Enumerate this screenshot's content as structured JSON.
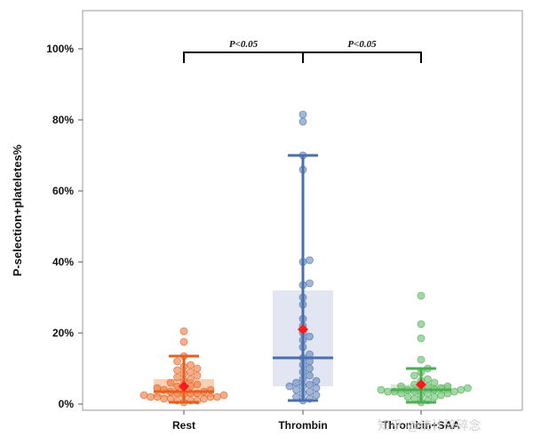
{
  "chart_data": {
    "type": "box",
    "title": "",
    "xlabel": "",
    "ylabel": "P-selection+plateletes%",
    "ylim": [
      0,
      100
    ],
    "yticks": [
      "0%",
      "20%",
      "40%",
      "60%",
      "80%",
      "100%"
    ],
    "grid": false,
    "categories": [
      "Rest",
      "Thrombin",
      "Thrombin+SAA"
    ],
    "series": [
      {
        "color": "#E8601C",
        "box_color": "#F9C8A8",
        "q1": 2,
        "median": 3.5,
        "q3": 7,
        "whisker_low": 0.5,
        "whisker_high": 13.5,
        "mean": 5,
        "points": [
          20.5,
          17.5,
          13.5,
          12,
          11,
          10.5,
          10,
          9.5,
          9,
          8.5,
          8,
          7.5,
          7,
          6.5,
          6,
          5.5,
          5,
          5,
          4.5,
          4.5,
          4,
          4,
          3.5,
          3.5,
          3,
          3,
          3,
          2.5,
          2.5,
          2.5,
          2,
          2,
          2,
          2,
          1.5,
          1.5,
          1.5,
          1,
          1,
          1,
          0.5
        ]
      },
      {
        "color": "#4A6FAE",
        "box_color": "#DCE2F0",
        "q1": 5,
        "median": 13,
        "q3": 32,
        "whisker_low": 1,
        "whisker_high": 70,
        "mean": 21,
        "points": [
          81.5,
          79.5,
          70,
          66,
          40.5,
          40,
          34,
          33.5,
          30,
          28,
          24,
          22,
          20,
          19,
          18,
          16,
          14,
          13,
          12,
          11,
          10,
          9,
          8,
          7,
          6.5,
          6,
          5.5,
          5,
          5,
          4.5,
          4,
          3.5,
          3,
          2.5,
          2,
          1.5,
          1
        ]
      },
      {
        "color": "#4CAE50",
        "box_color": "#C9E6CA",
        "q1": 3,
        "median": 4,
        "q3": 5.5,
        "whisker_low": 0.5,
        "whisker_high": 10,
        "mean": 5.5,
        "points": [
          30.5,
          22.5,
          18.5,
          12.5,
          10,
          9,
          8,
          7,
          6.5,
          6,
          5.5,
          5,
          5,
          5,
          4.5,
          4.5,
          4.5,
          4,
          4,
          4,
          4,
          3.5,
          3.5,
          3.5,
          3.5,
          3,
          3,
          3,
          2.5,
          2.5,
          2,
          2,
          1.5,
          1,
          0.5
        ]
      }
    ],
    "annotations": [
      {
        "text": "P<0.05",
        "from": "Rest",
        "to": "Thrombin",
        "y": 99
      },
      {
        "text": "P<0.05",
        "from": "Thrombin",
        "to": "Thrombin+SAA",
        "y": 99
      }
    ]
  },
  "watermark": "知乎 @统计碎碎念"
}
